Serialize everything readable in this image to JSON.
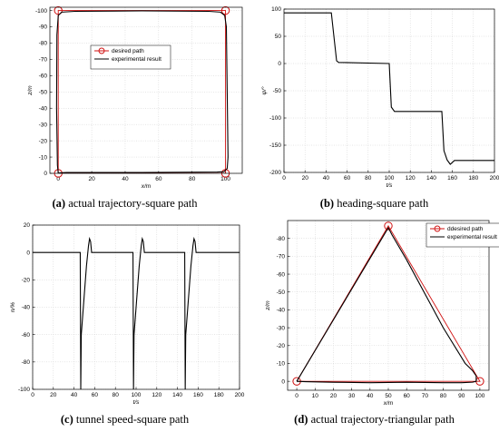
{
  "captions": [
    {
      "letter": "(a)",
      "text": " actual trajectory-square path"
    },
    {
      "letter": "(b)",
      "text": " heading-square path"
    },
    {
      "letter": "(c)",
      "text": " tunnel speed-square path"
    },
    {
      "letter": "(d)",
      "text": " actual trajectory-triangular path"
    }
  ],
  "colors": {
    "desired": "#d01010",
    "experimental": "#000000",
    "grid": "#cccccc",
    "axis": "#000000"
  },
  "chart_data": [
    {
      "type": "line",
      "xlabel": "x/m",
      "ylabel": "z/m",
      "xlim": [
        -5,
        110
      ],
      "ylim": [
        0,
        -102
      ],
      "xticks": [
        0,
        20,
        40,
        60,
        80,
        100
      ],
      "yticks": [
        0,
        -10,
        -20,
        -30,
        -40,
        -50,
        -60,
        -70,
        -80,
        -90,
        -100
      ],
      "grid": true,
      "legend_position": "center",
      "series": [
        {
          "name": "desired path",
          "color": "#d01010",
          "marker": "circle",
          "markers_at": [
            [
              0,
              0
            ],
            [
              0,
              -100
            ],
            [
              100,
              -100
            ],
            [
              100,
              0
            ]
          ],
          "x": [
            0,
            0,
            100,
            100,
            0
          ],
          "y": [
            0,
            -100,
            -100,
            0,
            0
          ]
        },
        {
          "name": "experimental result",
          "color": "#000000",
          "x": [
            0,
            -0.5,
            -1,
            -0.8,
            0,
            2,
            10,
            50,
            90,
            97,
            99.5,
            100.5,
            101,
            101.5,
            101,
            99,
            95,
            50,
            5,
            1,
            0
          ],
          "y": [
            0,
            -5,
            -40,
            -85,
            -97,
            -99,
            -99.5,
            -99.8,
            -99.5,
            -99,
            -97,
            -90,
            -50,
            -10,
            -3,
            -1,
            -0.8,
            -0.5,
            -0.5,
            -0.3,
            0
          ]
        }
      ]
    },
    {
      "type": "line",
      "xlabel": "t/s",
      "ylabel": "ψ/°",
      "xlim": [
        0,
        200
      ],
      "ylim": [
        -200,
        100
      ],
      "xticks": [
        0,
        20,
        40,
        60,
        80,
        100,
        120,
        140,
        160,
        180,
        200
      ],
      "yticks": [
        100,
        50,
        0,
        -50,
        -100,
        -150,
        -200
      ],
      "grid": true,
      "series": [
        {
          "name": "",
          "color": "#000000",
          "x": [
            0,
            45,
            48,
            50,
            52,
            100,
            102,
            105,
            150,
            152,
            155,
            158,
            162,
            200
          ],
          "y": [
            93,
            93,
            40,
            5,
            2,
            0,
            -80,
            -88,
            -88,
            -160,
            -177,
            -185,
            -178,
            -178
          ]
        }
      ]
    },
    {
      "type": "line",
      "xlabel": "t/s",
      "ylabel": "n/%",
      "xlim": [
        0,
        200
      ],
      "ylim": [
        -100,
        20
      ],
      "xticks": [
        0,
        20,
        40,
        60,
        80,
        100,
        120,
        140,
        160,
        180,
        200
      ],
      "yticks": [
        20,
        0,
        -20,
        -40,
        -60,
        -80,
        -100
      ],
      "grid": true,
      "series": [
        {
          "name": "",
          "color": "#000000",
          "x": [
            0,
            46,
            46.5,
            47,
            49,
            52,
            54,
            55,
            56,
            57,
            97,
            97.5,
            98,
            100,
            103,
            105,
            106,
            107,
            108,
            147,
            147.5,
            148,
            150,
            153,
            155,
            156,
            157,
            158,
            200
          ],
          "y": [
            0,
            0,
            -100,
            -60,
            -40,
            -10,
            5,
            10,
            8,
            0,
            0,
            -100,
            -60,
            -40,
            -10,
            5,
            10,
            8,
            0,
            0,
            -100,
            -60,
            -40,
            -10,
            5,
            10,
            8,
            0,
            0
          ]
        }
      ]
    },
    {
      "type": "line",
      "xlabel": "x/m",
      "ylabel": "z/m",
      "xlim": [
        -5,
        105
      ],
      "ylim": [
        5,
        -90
      ],
      "xticks": [
        0,
        10,
        20,
        30,
        40,
        50,
        60,
        70,
        80,
        90,
        100
      ],
      "yticks": [
        0,
        -10,
        -20,
        -30,
        -40,
        -50,
        -60,
        -70,
        -80
      ],
      "grid": true,
      "legend_position": "top-right",
      "series": [
        {
          "name": "ddesired path",
          "color": "#d01010",
          "marker": "circle",
          "markers_at": [
            [
              0,
              0
            ],
            [
              50,
              -87
            ],
            [
              100,
              0
            ]
          ],
          "x": [
            0,
            50,
            100,
            0
          ],
          "y": [
            0,
            -87,
            0,
            0
          ]
        },
        {
          "name": "experimental result",
          "color": "#000000",
          "x": [
            0,
            50,
            52,
            60,
            80,
            92,
            96,
            98,
            98,
            96,
            90,
            80,
            60,
            40,
            20,
            5,
            0
          ],
          "y": [
            0,
            -86,
            -82,
            -68,
            -30,
            -10,
            -6,
            -3,
            0,
            0.5,
            0.8,
            0.8,
            0.5,
            0.8,
            0.5,
            0.2,
            0
          ]
        }
      ]
    }
  ]
}
